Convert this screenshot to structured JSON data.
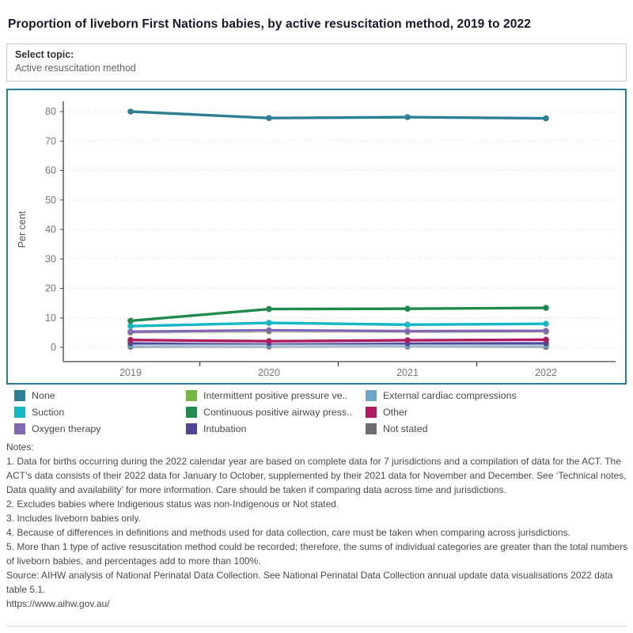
{
  "header": {
    "title": "Proportion of liveborn First Nations babies, by active resuscitation method, 2019 to 2022"
  },
  "topic_selector": {
    "label": "Select topic:",
    "value": "Active resuscitation method"
  },
  "chart_data": {
    "type": "line",
    "title": "",
    "xlabel": "",
    "ylabel": "Per cent",
    "ylim": [
      0,
      80
    ],
    "ytick_step": 10,
    "yticks": [
      0,
      10,
      20,
      30,
      40,
      50,
      60,
      70,
      80
    ],
    "grid": "horizontal-dotted",
    "legend_position": "below",
    "categories": [
      "2019",
      "2020",
      "2021",
      "2022"
    ],
    "series": [
      {
        "name": "None",
        "color": "#2d7f94",
        "values": [
          80.0,
          77.8,
          78.1,
          77.7
        ]
      },
      {
        "name": "Suction",
        "color": "#16b7c6",
        "values": [
          7.2,
          8.3,
          7.7,
          8.0
        ]
      },
      {
        "name": "Oxygen therapy",
        "color": "#8268b2",
        "values": [
          5.3,
          5.8,
          5.5,
          5.6
        ]
      },
      {
        "name": "Intermittent positive pressure ventilation",
        "color": "#79b543",
        "values": [
          5.0,
          5.4,
          5.2,
          5.3
        ]
      },
      {
        "name": "Continuous positive airway pressure",
        "color": "#1e8a4c",
        "values": [
          9.0,
          13.0,
          13.1,
          13.4
        ]
      },
      {
        "name": "Intubation",
        "color": "#4e4697",
        "values": [
          1.4,
          1.4,
          1.4,
          1.4
        ]
      },
      {
        "name": "External cardiac compressions",
        "color": "#70a6c5",
        "values": [
          0.7,
          0.8,
          0.7,
          0.7
        ]
      },
      {
        "name": "Other",
        "color": "#ad1c5e",
        "values": [
          2.5,
          2.1,
          2.4,
          2.6
        ]
      },
      {
        "name": "Not stated",
        "color": "#6a6e72",
        "values": [
          0.2,
          0.3,
          0.3,
          0.2
        ]
      }
    ],
    "legend": [
      {
        "label": "None",
        "color": "#2d7f94"
      },
      {
        "label": "Intermittent positive pressure ve..",
        "color": "#79b543"
      },
      {
        "label": "External cardiac compressions",
        "color": "#70a6c5"
      },
      {
        "label": "Suction",
        "color": "#16b7c6"
      },
      {
        "label": "Continuous positive airway press..",
        "color": "#1e8a4c"
      },
      {
        "label": "Other",
        "color": "#ad1c5e"
      },
      {
        "label": "Oxygen therapy",
        "color": "#8268b2"
      },
      {
        "label": "Intubation",
        "color": "#4e4697"
      },
      {
        "label": "Not stated",
        "color": "#6a6e72"
      }
    ]
  },
  "notes": {
    "label": "Notes:",
    "items": [
      "1. Data for births occurring during the 2022 calendar year are based on complete data for 7 jurisdictions and a compilation of data for the ACT. The ACT’s data consists of their 2022 data for January to October, supplemented by their 2021 data for November and December. See ‘Technical notes, Data quality and availability’ for more information. Care should be taken if comparing data across time and jurisdictions.",
      "2. Excludes babies where Indigenous status was non-Indigenous or Not stated.",
      "3. Includes liveborn babies only.",
      "4. Because of differences in definitions and methods used for data collection, care must be taken when comparing across jurisdictions.",
      "5. More than 1 type of active resuscitation method could be recorded; therefore, the sums of individual categories are greater than the total numbers of liveborn babies, and percentages add to more than 100%."
    ]
  },
  "source": {
    "text": "Source: AIHW analysis of National Perinatal Data Collection. See National Perinatal Data Collection annual update data visualisations 2022 data table 5.1.",
    "url": "https://www.aihw.gov.au/"
  },
  "colors": {
    "chart_border": "#2b7b92",
    "axis": "#424242",
    "gridline": "#d2d2d2",
    "tick_label": "#767676",
    "notes_text": "#4a4a4a"
  }
}
